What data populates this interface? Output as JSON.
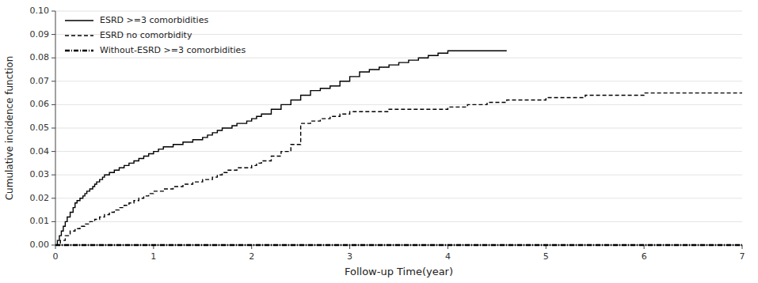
{
  "chart_data": {
    "type": "line",
    "xlabel": "Follow-up Time(year)",
    "ylabel": "Cumulative incidence function",
    "xlim": [
      0,
      7
    ],
    "ylim": [
      0,
      0.1
    ],
    "xticks": [
      0,
      1,
      2,
      3,
      4,
      5,
      6,
      7
    ],
    "yticks": [
      {
        "value": 0.0,
        "label": "0.00"
      },
      0.01,
      0.02,
      0.03,
      0.04,
      0.05,
      0.06,
      0.07,
      0.08,
      0.09,
      {
        "value": 0.1,
        "label": "0.10"
      }
    ],
    "grid": true,
    "legend": "upper left",
    "series": [
      {
        "name": "ESRD >=3 comorbidities",
        "type": "step",
        "color": "#000000",
        "line_style": "solid",
        "x": [
          0.0,
          0.02,
          0.04,
          0.06,
          0.08,
          0.1,
          0.12,
          0.15,
          0.18,
          0.2,
          0.22,
          0.25,
          0.28,
          0.3,
          0.32,
          0.35,
          0.38,
          0.4,
          0.42,
          0.45,
          0.48,
          0.5,
          0.55,
          0.6,
          0.65,
          0.7,
          0.75,
          0.8,
          0.85,
          0.9,
          0.95,
          1.0,
          1.05,
          1.1,
          1.15,
          1.2,
          1.25,
          1.3,
          1.35,
          1.4,
          1.45,
          1.5,
          1.55,
          1.6,
          1.65,
          1.7,
          1.75,
          1.8,
          1.85,
          1.9,
          1.95,
          2.0,
          2.05,
          2.1,
          2.2,
          2.3,
          2.4,
          2.5,
          2.6,
          2.7,
          2.8,
          2.9,
          3.0,
          3.1,
          3.2,
          3.3,
          3.4,
          3.5,
          3.6,
          3.7,
          3.8,
          3.9,
          4.0,
          4.1,
          4.2,
          4.3,
          4.4,
          4.5,
          4.6
        ],
        "values": [
          0.0,
          0.002,
          0.004,
          0.006,
          0.008,
          0.01,
          0.012,
          0.014,
          0.016,
          0.018,
          0.019,
          0.02,
          0.021,
          0.022,
          0.023,
          0.024,
          0.025,
          0.026,
          0.027,
          0.028,
          0.029,
          0.03,
          0.031,
          0.032,
          0.033,
          0.034,
          0.035,
          0.036,
          0.037,
          0.038,
          0.039,
          0.04,
          0.041,
          0.042,
          0.042,
          0.043,
          0.043,
          0.044,
          0.044,
          0.045,
          0.045,
          0.046,
          0.047,
          0.048,
          0.049,
          0.05,
          0.05,
          0.051,
          0.052,
          0.052,
          0.053,
          0.054,
          0.055,
          0.056,
          0.058,
          0.06,
          0.062,
          0.064,
          0.066,
          0.067,
          0.068,
          0.07,
          0.072,
          0.074,
          0.075,
          0.076,
          0.077,
          0.078,
          0.079,
          0.08,
          0.081,
          0.082,
          0.083,
          0.083,
          0.083,
          0.083,
          0.083,
          0.083,
          0.083
        ]
      },
      {
        "name": "ESRD no comorbidity",
        "type": "step",
        "color": "#000000",
        "line_style": "dashed",
        "x": [
          0.0,
          0.05,
          0.1,
          0.15,
          0.2,
          0.25,
          0.3,
          0.35,
          0.4,
          0.45,
          0.5,
          0.55,
          0.6,
          0.65,
          0.7,
          0.75,
          0.8,
          0.85,
          0.9,
          0.95,
          1.0,
          1.1,
          1.2,
          1.3,
          1.4,
          1.5,
          1.55,
          1.6,
          1.65,
          1.7,
          1.75,
          1.8,
          1.85,
          1.9,
          1.95,
          2.0,
          2.05,
          2.1,
          2.2,
          2.3,
          2.4,
          2.5,
          2.6,
          2.7,
          2.8,
          2.9,
          3.0,
          3.2,
          3.4,
          3.6,
          3.8,
          4.0,
          4.2,
          4.4,
          4.6,
          4.8,
          5.0,
          5.2,
          5.4,
          5.6,
          5.8,
          6.0,
          6.2,
          6.4,
          6.6,
          6.8,
          7.0
        ],
        "values": [
          0.0,
          0.002,
          0.004,
          0.006,
          0.007,
          0.008,
          0.009,
          0.01,
          0.011,
          0.012,
          0.013,
          0.014,
          0.015,
          0.016,
          0.017,
          0.018,
          0.019,
          0.02,
          0.021,
          0.022,
          0.023,
          0.024,
          0.025,
          0.026,
          0.027,
          0.028,
          0.028,
          0.029,
          0.03,
          0.031,
          0.032,
          0.032,
          0.033,
          0.033,
          0.033,
          0.034,
          0.035,
          0.036,
          0.038,
          0.04,
          0.043,
          0.052,
          0.053,
          0.054,
          0.055,
          0.056,
          0.057,
          0.057,
          0.058,
          0.058,
          0.058,
          0.059,
          0.06,
          0.061,
          0.062,
          0.062,
          0.063,
          0.063,
          0.064,
          0.064,
          0.064,
          0.065,
          0.065,
          0.065,
          0.065,
          0.065,
          0.065
        ]
      },
      {
        "name": "Without-ESRD >=3 comorbidities",
        "type": "line",
        "color": "#000000",
        "line_style": "dashdot",
        "x": [
          0.0,
          7.0
        ],
        "values": [
          0.0,
          0.0
        ]
      }
    ]
  }
}
